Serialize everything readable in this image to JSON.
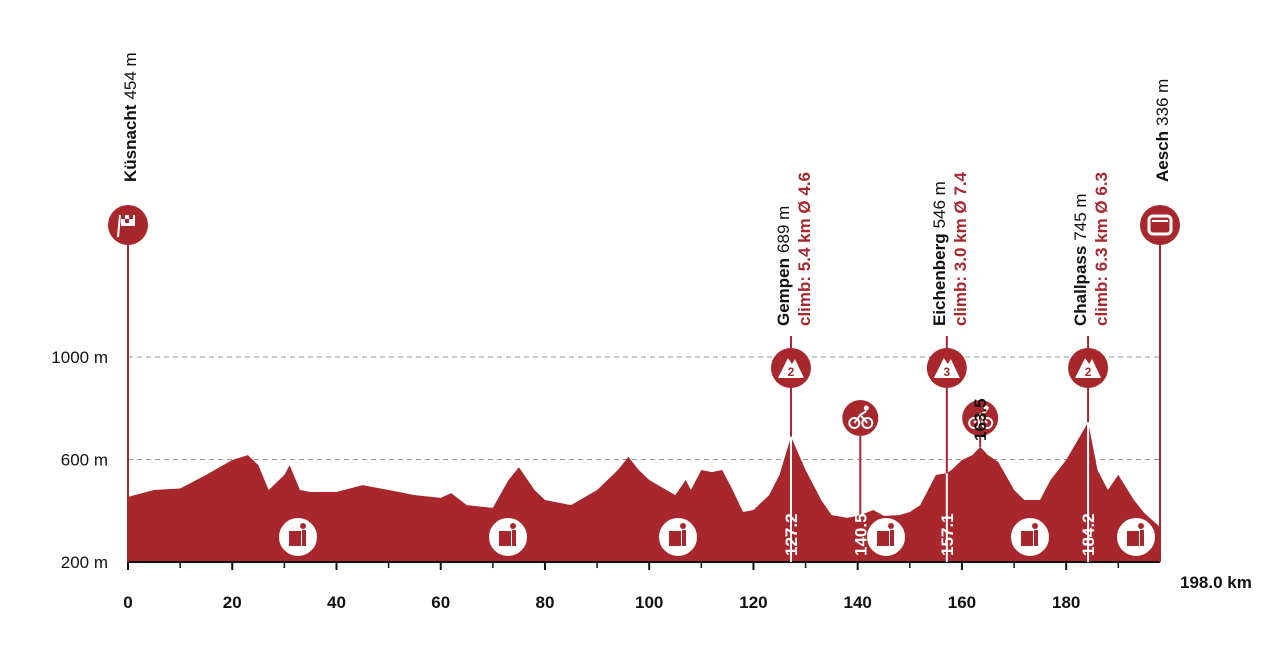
{
  "chart_data": {
    "type": "area",
    "color": "#a8272d",
    "x": [
      0,
      5,
      10,
      15,
      20,
      23,
      25,
      27,
      30,
      31,
      33,
      35,
      40,
      45,
      50,
      55,
      60,
      62,
      65,
      70,
      73,
      75,
      78,
      80,
      85,
      90,
      94,
      96,
      98,
      100,
      105,
      107,
      108,
      110,
      112,
      114,
      116,
      118,
      120,
      123,
      125,
      127.2,
      130,
      133,
      135,
      138,
      140.5,
      143,
      145,
      148,
      150,
      152,
      155,
      157.1,
      158,
      160,
      162,
      163.5,
      165,
      167,
      170,
      172,
      175,
      177,
      180,
      184.2,
      186,
      188,
      190,
      193,
      195,
      198
    ],
    "values": [
      454,
      481,
      487,
      540,
      598,
      617,
      578,
      481,
      540,
      578,
      481,
      473,
      473,
      500,
      481,
      461,
      450,
      469,
      422,
      411,
      520,
      570,
      481,
      442,
      422,
      481,
      559,
      610,
      559,
      520,
      461,
      520,
      481,
      559,
      551,
      559,
      481,
      395,
      403,
      461,
      540,
      689,
      559,
      442,
      383,
      372,
      383,
      403,
      380,
      383,
      395,
      422,
      540,
      546,
      559,
      598,
      617,
      649,
      617,
      590,
      481,
      442,
      442,
      520,
      598,
      745,
      559,
      481,
      540,
      442,
      391,
      336
    ],
    "xlim": [
      0,
      198
    ],
    "ylim": [
      200,
      1000
    ],
    "xticks": [
      0,
      20,
      40,
      60,
      80,
      100,
      120,
      140,
      160,
      180
    ],
    "xminorticks": [
      10,
      30,
      50,
      70,
      90,
      110,
      130,
      150,
      170,
      190
    ],
    "yticks": [
      {
        "value": 200,
        "label": "200 m"
      },
      {
        "value": 600,
        "label": "600 m"
      },
      {
        "value": 1000,
        "label": "1000 m"
      }
    ],
    "grid": true,
    "end_label": "198.0 km",
    "start": {
      "name": "Küsnacht",
      "elevation": "454 m",
      "km": 0
    },
    "finish": {
      "name": "Aesch",
      "elevation": "336 m",
      "km": 198
    },
    "climbs": [
      {
        "name": "Gempen",
        "elevation": "689 m",
        "climb": "climb: 5.4 km Ø 4.6",
        "category": "2",
        "km": 127.2
      },
      {
        "name": "Eichenberg",
        "elevation": "546 m",
        "climb": "climb: 3.0 km Ø 7.4",
        "category": "3",
        "km": 157.1
      },
      {
        "name": "Challpass",
        "elevation": "745 m",
        "climb": "climb: 6.3 km Ø 6.3",
        "category": "2",
        "km": 184.2
      }
    ],
    "sprints": [
      {
        "km": 140.5
      },
      {
        "km": 163.5
      }
    ]
  }
}
